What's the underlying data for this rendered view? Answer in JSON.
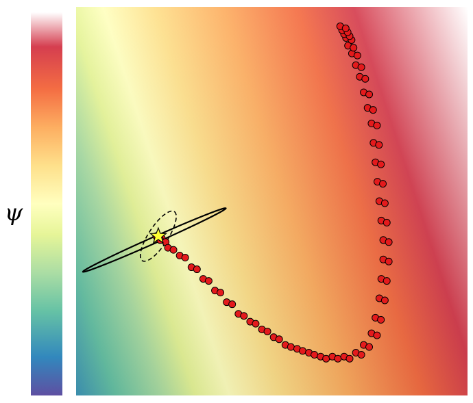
{
  "chart_data": {
    "type": "heatmap",
    "colorbar": {
      "label": "ψ",
      "colormap": "Spectral_r",
      "stops": [
        "#5e4fa2",
        "#3288bd",
        "#66c2a5",
        "#abdda4",
        "#e6f598",
        "#ffffbf",
        "#fee08b",
        "#fdae61",
        "#f46d43",
        "#d53e4f",
        "#ffffff"
      ]
    },
    "series": [
      {
        "kind": "trajectory-points",
        "color": "#e41a1c",
        "edge_color": "#000000",
        "x": [
          0.21,
          0.22,
          0.24,
          0.27,
          0.3,
          0.33,
          0.36,
          0.39,
          0.42,
          0.45,
          0.48,
          0.51,
          0.54,
          0.57,
          0.6,
          0.63,
          0.66,
          0.69,
          0.72,
          0.74,
          0.76,
          0.77,
          0.78,
          0.785,
          0.79,
          0.79,
          0.785,
          0.78,
          0.775,
          0.77,
          0.765,
          0.76,
          0.75,
          0.74,
          0.73,
          0.72,
          0.71,
          0.7,
          0.695,
          0.69,
          0.685,
          0.68
        ],
        "y": [
          0.41,
          0.4,
          0.38,
          0.36,
          0.33,
          0.3,
          0.27,
          0.24,
          0.21,
          0.19,
          0.17,
          0.15,
          0.13,
          0.12,
          0.11,
          0.1,
          0.1,
          0.1,
          0.11,
          0.13,
          0.16,
          0.2,
          0.25,
          0.3,
          0.35,
          0.4,
          0.45,
          0.5,
          0.55,
          0.6,
          0.65,
          0.7,
          0.74,
          0.78,
          0.82,
          0.85,
          0.88,
          0.9,
          0.92,
          0.93,
          0.94,
          0.95
        ]
      }
    ],
    "markers": [
      {
        "kind": "star",
        "x": 0.21,
        "y": 0.41,
        "color": "#ffff33"
      }
    ],
    "ellipses": [
      {
        "style": "solid",
        "cx": 0.2,
        "cy": 0.4,
        "rx": 0.2,
        "ry": 0.008,
        "angle_deg": -24
      },
      {
        "style": "dashed",
        "cx": 0.21,
        "cy": 0.41,
        "rx": 0.075,
        "ry": 0.025,
        "angle_deg": -57
      }
    ],
    "xlim": [
      0,
      1
    ],
    "ylim": [
      0,
      1
    ],
    "grid": false,
    "axes_visible": false
  }
}
